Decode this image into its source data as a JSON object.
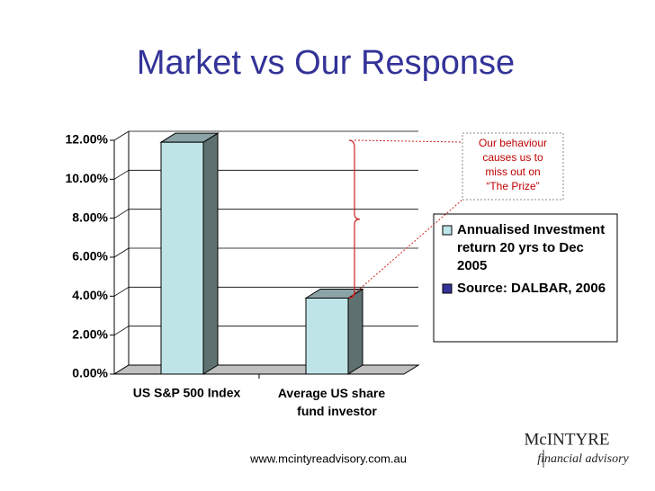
{
  "chart_data": {
    "type": "bar",
    "title": "Market vs Our Response",
    "categories": [
      "US S&P 500 Index",
      "Average US share fund investor"
    ],
    "series": [
      {
        "name": "Annualised Investment return 20 yrs to Dec 2005",
        "color": "#bfe4e8",
        "values": [
          11.9,
          3.9
        ]
      }
    ],
    "legend_note": {
      "text": "Source: DALBAR, 2006",
      "color": "#333399"
    },
    "ylim": [
      0,
      12
    ],
    "yticks": [
      {
        "value": 0,
        "label": "0.00%"
      },
      {
        "value": 2,
        "label": "2.00%"
      },
      {
        "value": 4,
        "label": "4.00%"
      },
      {
        "value": 6,
        "label": "6.00%"
      },
      {
        "value": 8,
        "label": "8.00%"
      },
      {
        "value": 10,
        "label": "10.00%"
      },
      {
        "value": 12,
        "label": "12.00%"
      }
    ],
    "grid": true,
    "annotation": "Our behaviour causes us to miss out on “The Prize”",
    "footer": "www.mcintyreadvisory.com.au",
    "logo": {
      "name": "McINTYRE",
      "tagline": "financial advisory"
    }
  }
}
